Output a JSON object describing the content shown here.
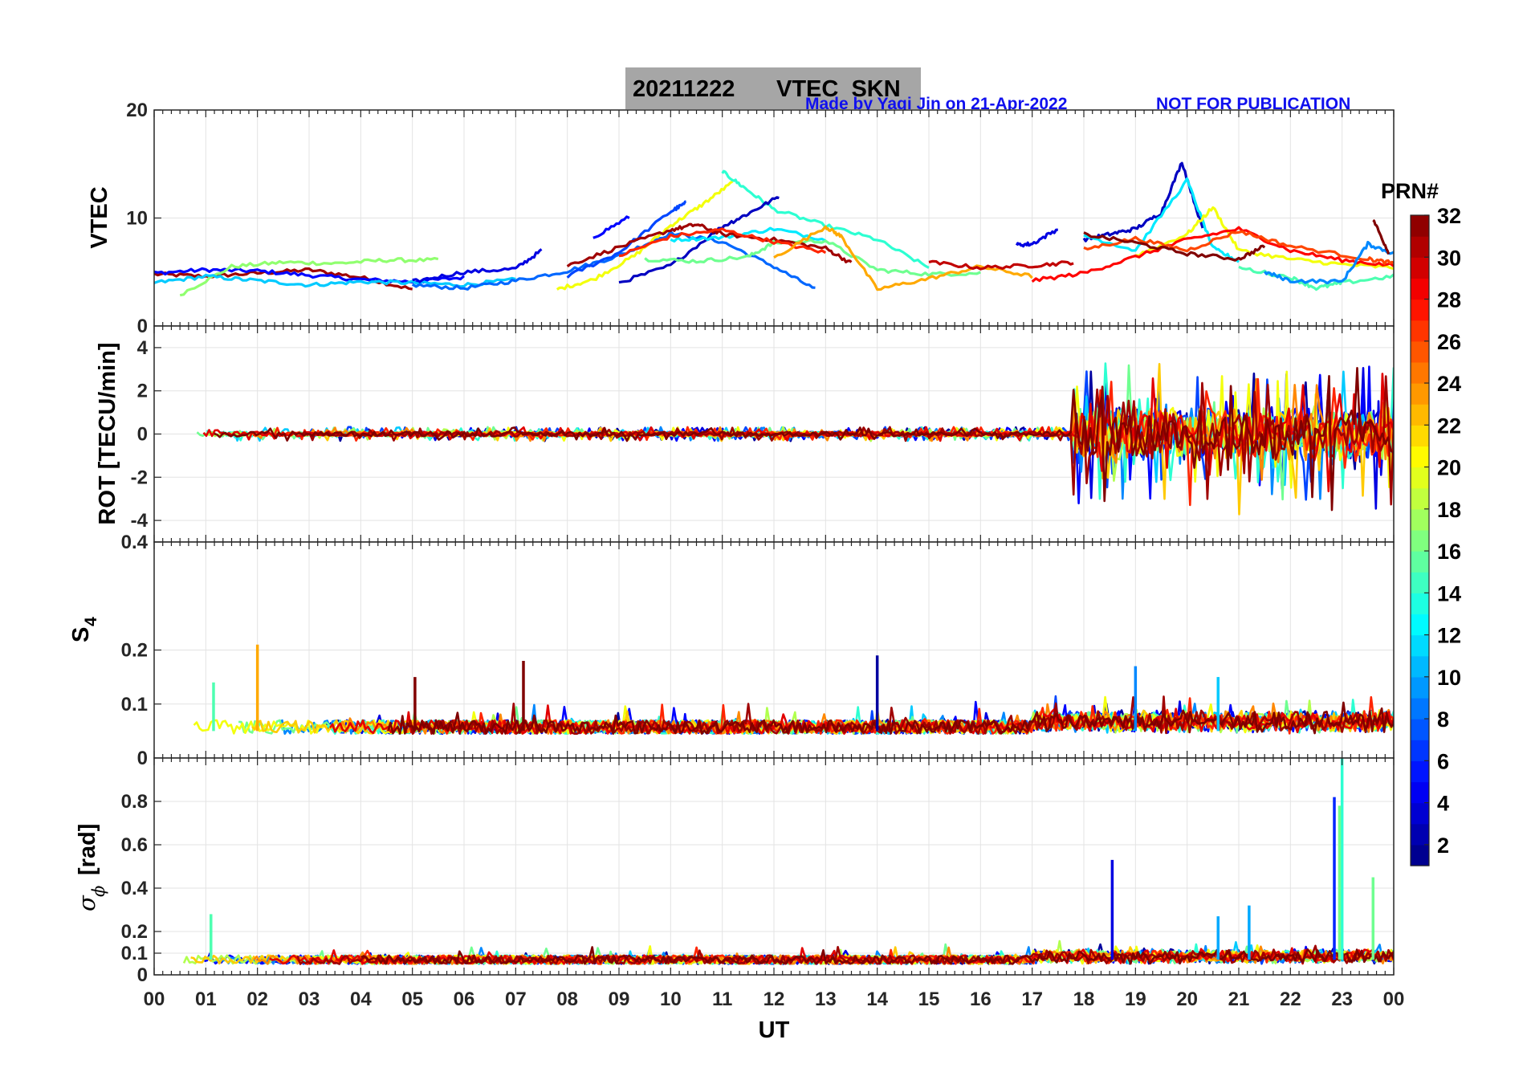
{
  "figure": {
    "title_date": "20211222",
    "title_name": "VTEC  SKN",
    "credit_left": "Made by Yaqi Jin on 21-Apr-2022",
    "credit_right": "NOT FOR PUBLICATION",
    "credit_color": "#1010ee",
    "title_box_color": "#a6a6a6"
  },
  "colorbar": {
    "label": "PRN#",
    "ticks": [
      "2",
      "4",
      "6",
      "8",
      "10",
      "12",
      "14",
      "16",
      "18",
      "20",
      "22",
      "24",
      "26",
      "28",
      "30",
      "32"
    ],
    "range": [
      1,
      32
    ],
    "colormap": "jet"
  },
  "chart_data": [
    {
      "type": "line",
      "panel": "vtec",
      "ylabel": "VTEC",
      "ylim": [
        0,
        20
      ],
      "yticks": [
        "0",
        "10",
        "20"
      ],
      "xlim": [
        0,
        24
      ],
      "grid": true,
      "series_note": "one line per satellite, colored by PRN",
      "series": [
        {
          "prn": 31,
          "x": [
            0,
            1,
            2,
            3,
            4,
            5
          ],
          "y": [
            4.8,
            4.6,
            4.9,
            5.2,
            4.5,
            3.4
          ]
        },
        {
          "prn": 5,
          "x": [
            0,
            1,
            2,
            3,
            4,
            5,
            6
          ],
          "y": [
            4.9,
            5.2,
            5.1,
            4.7,
            4.3,
            4.1,
            4.5
          ]
        },
        {
          "prn": 17,
          "x": [
            0.5,
            1.5,
            2.5,
            3.5,
            4.5,
            5.5
          ],
          "y": [
            2.9,
            5.5,
            5.9,
            5.8,
            6.1,
            6.1
          ]
        },
        {
          "prn": 11,
          "x": [
            0,
            1,
            2,
            3,
            4,
            5,
            6,
            7
          ],
          "y": [
            4.0,
            4.6,
            4.2,
            3.8,
            4.1,
            4.0,
            3.8,
            4.3
          ]
        },
        {
          "prn": 8,
          "x": [
            5,
            6,
            7,
            8,
            9,
            10,
            11,
            12,
            12.8
          ],
          "y": [
            3.8,
            3.5,
            4.2,
            5.1,
            6.5,
            8.6,
            7.8,
            5.5,
            3.4
          ]
        },
        {
          "prn": 4,
          "x": [
            5,
            6,
            7,
            7.5
          ],
          "y": [
            4.1,
            5.0,
            5.3,
            7.0
          ]
        },
        {
          "prn": 20,
          "x": [
            7.8,
            8.5,
            9.3,
            10,
            10.6,
            11.2
          ],
          "y": [
            3.4,
            4.3,
            6.5,
            9.3,
            11.2,
            13.3
          ]
        },
        {
          "prn": 14,
          "x": [
            11,
            11.4,
            12,
            13,
            14,
            15
          ],
          "y": [
            14.3,
            12.9,
            10.8,
            9.3,
            8.0,
            5.4
          ]
        },
        {
          "prn": 7,
          "x": [
            8,
            9,
            10,
            10.3
          ],
          "y": [
            4.6,
            6.8,
            10.6,
            11.4
          ]
        },
        {
          "prn": 5,
          "x": [
            8.5,
            9.2
          ],
          "y": [
            8.2,
            10.1
          ]
        },
        {
          "prn": 3,
          "x": [
            9,
            10,
            11,
            11.5,
            12.1
          ],
          "y": [
            4.0,
            5.6,
            9.2,
            10.4,
            12.0
          ]
        },
        {
          "prn": 12,
          "x": [
            10,
            11,
            12,
            13
          ],
          "y": [
            8.0,
            8.2,
            9.0,
            8.0
          ]
        },
        {
          "prn": 16,
          "x": [
            9.5,
            10.5,
            11.5,
            12,
            13,
            14,
            15,
            16
          ],
          "y": [
            6.2,
            6.0,
            6.4,
            7.7,
            7.9,
            5.2,
            4.8,
            4.9
          ]
        },
        {
          "prn": 31,
          "x": [
            8,
            9,
            10,
            10.5,
            11,
            12,
            13,
            13.5
          ],
          "y": [
            5.6,
            7.3,
            8.9,
            9.4,
            8.5,
            8.0,
            7.2,
            5.8
          ]
        },
        {
          "prn": 27,
          "x": [
            9,
            10,
            11,
            12,
            13
          ],
          "y": [
            6.5,
            8.3,
            8.9,
            7.8,
            6.8
          ]
        },
        {
          "prn": 23,
          "x": [
            12,
            13,
            13.3,
            14,
            15,
            16,
            17
          ],
          "y": [
            6.3,
            9.2,
            8.3,
            3.4,
            4.4,
            5.5,
            4.6
          ]
        },
        {
          "prn": 30,
          "x": [
            15,
            16,
            17,
            17.8
          ],
          "y": [
            5.9,
            5.4,
            5.6,
            5.9
          ]
        },
        {
          "prn": 4,
          "x": [
            16.7,
            17,
            17.5
          ],
          "y": [
            7.5,
            7.6,
            9.0
          ]
        },
        {
          "prn": 3,
          "x": [
            18,
            18.5,
            19,
            19.5,
            19.9,
            20.3
          ],
          "y": [
            8.0,
            8.5,
            9.0,
            10.5,
            15.2,
            9.0
          ]
        },
        {
          "prn": 12,
          "x": [
            18,
            19,
            20,
            20.5,
            21
          ],
          "y": [
            8.4,
            7.0,
            13.5,
            7.2,
            6.0
          ]
        },
        {
          "prn": 20,
          "x": [
            19,
            20,
            20.5,
            21,
            22,
            23,
            24
          ],
          "y": [
            6.5,
            8.5,
            11.0,
            7.0,
            6.2,
            5.7,
            5.4
          ]
        },
        {
          "prn": 28,
          "x": [
            17,
            18,
            19,
            20,
            21,
            22,
            23,
            24
          ],
          "y": [
            4.2,
            4.9,
            6.4,
            8.0,
            9.0,
            7.0,
            6.1,
            5.6
          ]
        },
        {
          "prn": 26,
          "x": [
            18,
            19,
            20,
            21,
            22,
            23.5,
            24
          ],
          "y": [
            7.1,
            8.1,
            7.0,
            8.8,
            7.4,
            6.2,
            5.8
          ]
        },
        {
          "prn": 32,
          "x": [
            18,
            19,
            20,
            21,
            21.5
          ],
          "y": [
            8.5,
            7.7,
            6.7,
            6.2,
            7.4
          ]
        },
        {
          "prn": 15,
          "x": [
            21,
            22,
            22.5,
            23,
            24
          ],
          "y": [
            5.4,
            4.5,
            3.5,
            4.0,
            4.6
          ]
        },
        {
          "prn": 9,
          "x": [
            21.5,
            22,
            23,
            23.5,
            24
          ],
          "y": [
            5.0,
            4.2,
            4.1,
            7.6,
            6.7
          ]
        },
        {
          "prn": 32,
          "x": [
            23.6,
            23.9
          ],
          "y": [
            9.9,
            6.8
          ]
        }
      ]
    },
    {
      "type": "line",
      "panel": "rot",
      "ylabel": "ROT [TECU/min]",
      "ylim": [
        -5,
        5
      ],
      "yticks": [
        "-4",
        "-2",
        "0",
        "2",
        "4"
      ],
      "xlim": [
        0,
        24
      ],
      "grid": true,
      "series_note": "rate of TEC per satellite; quiet ±0.4 before 18 UT, up to about ±4 after 18 UT"
    },
    {
      "type": "line",
      "panel": "s4",
      "ylabel": "S",
      "ylabel_sub": "4",
      "ylim": [
        0,
        0.4
      ],
      "yticks": [
        "0",
        "0.1",
        "0.2",
        "0.4"
      ],
      "xlim": [
        0,
        24
      ],
      "grid": true,
      "series_note": "amplitude scintillation index, baseline ~0.04-0.07 with spikes",
      "spikes": [
        {
          "prn": 23,
          "x": 2.0,
          "y": 0.21
        },
        {
          "prn": 15,
          "x": 1.15,
          "y": 0.14
        },
        {
          "prn": 32,
          "x": 5.05,
          "y": 0.15
        },
        {
          "prn": 32,
          "x": 7.15,
          "y": 0.18
        },
        {
          "prn": 2,
          "x": 14.0,
          "y": 0.19
        },
        {
          "prn": 9,
          "x": 19.0,
          "y": 0.17
        },
        {
          "prn": 11,
          "x": 20.6,
          "y": 0.15
        }
      ]
    },
    {
      "type": "line",
      "panel": "sigma_phi",
      "ylabel": "σ",
      "ylabel_sub": "ϕ",
      "ylabel_unit": "[rad]",
      "ylim": [
        0,
        1.0
      ],
      "yticks": [
        "0",
        "0.1",
        "0.2",
        "0.4",
        "0.6",
        "0.8"
      ],
      "xlim": [
        0,
        24
      ],
      "grid": true,
      "xlabel": "UT",
      "xticks": [
        "00",
        "01",
        "02",
        "03",
        "04",
        "05",
        "06",
        "07",
        "08",
        "09",
        "10",
        "11",
        "12",
        "13",
        "14",
        "15",
        "16",
        "17",
        "18",
        "19",
        "20",
        "21",
        "22",
        "23",
        "00"
      ],
      "series_note": "phase scintillation index, baseline ~0.05-0.1 with spikes",
      "spikes": [
        {
          "prn": 15,
          "x": 1.1,
          "y": 0.28
        },
        {
          "prn": 4,
          "x": 18.55,
          "y": 0.53
        },
        {
          "prn": 6,
          "x": 22.85,
          "y": 0.82
        },
        {
          "prn": 14,
          "x": 23.0,
          "y": 1.0
        },
        {
          "prn": 16,
          "x": 22.95,
          "y": 0.78
        },
        {
          "prn": 16,
          "x": 23.6,
          "y": 0.45
        },
        {
          "prn": 10,
          "x": 21.2,
          "y": 0.32
        },
        {
          "prn": 10,
          "x": 20.6,
          "y": 0.27
        }
      ]
    }
  ]
}
